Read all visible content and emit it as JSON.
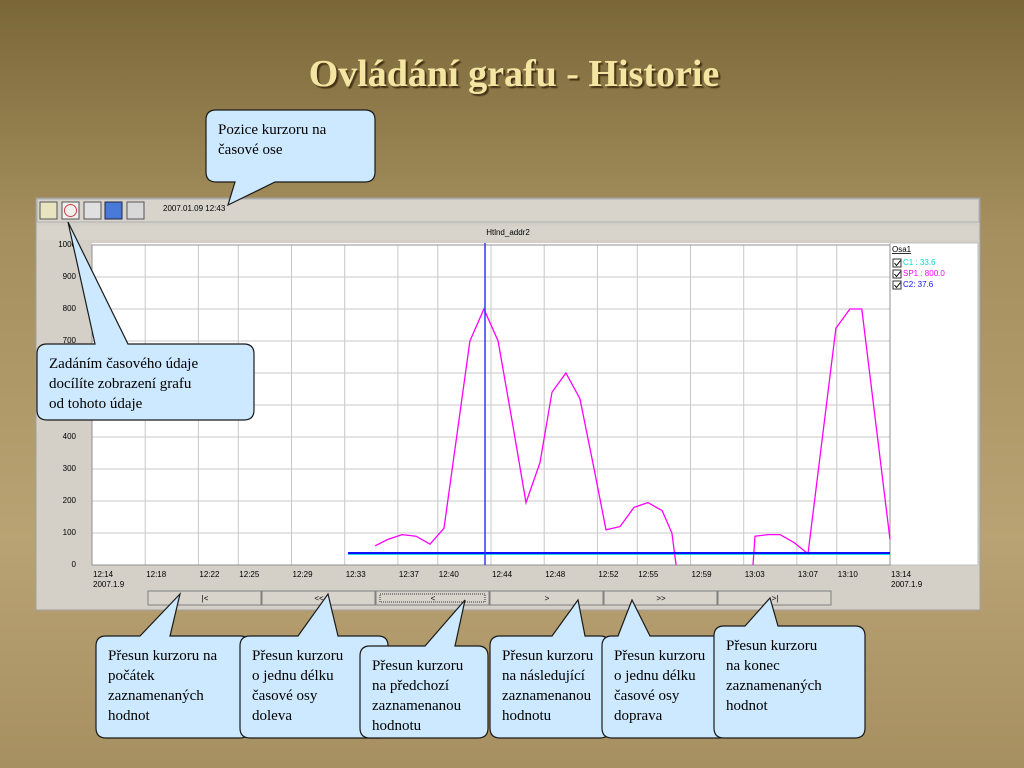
{
  "slide": {
    "title": "Ovládání grafu - Historie"
  },
  "toolbar": {
    "timestamp": "2007.01.09 12:43"
  },
  "chart_data": {
    "type": "line",
    "title": "Htlnd_addr2",
    "xlim": [
      "12:14",
      "13:14"
    ],
    "xticks": [
      "12:14",
      "12:18",
      "12:22",
      "12:25",
      "12:29",
      "12:33",
      "12:37",
      "12:40",
      "12:44",
      "12:48",
      "12:52",
      "12:55",
      "12:59",
      "13:03",
      "13:07",
      "13:10",
      "13:14"
    ],
    "date_label": "2007.1.9",
    "ylim": [
      0,
      1000
    ],
    "yticks": [
      0,
      100,
      200,
      300,
      400,
      500,
      600,
      700,
      800,
      900,
      1000
    ],
    "grid": true,
    "cursor": {
      "x": "12:43:33",
      "color": "#3535ff"
    },
    "legend": {
      "title": "Osa1"
    },
    "series": [
      {
        "name": "C1 : 33.6",
        "color": "#00d8d8",
        "x": [
          "12:33:15",
          "13:14:00"
        ],
        "values": [
          33.6,
          33.6
        ]
      },
      {
        "name": "SP1 : 800.0",
        "color": "#ff00ff",
        "x": [
          "12:35:17",
          "12:36:15",
          "12:37:19",
          "12:38:22",
          "12:39:25",
          "12:40:28",
          "12:42:25",
          "12:43:28",
          "12:44:32",
          "12:45:35",
          "12:46:38",
          "12:47:41",
          "12:48:35",
          "12:49:38",
          "12:50:41",
          "12:51:45",
          "12:52:39",
          "12:53:42",
          "12:54:45",
          "12:55:48",
          "12:56:52",
          "12:57:36",
          "12:57:55",
          "13:00:00",
          "13:03:42",
          "13:03:51",
          "13:04:50",
          "13:05:44",
          "13:06:47",
          "13:07:50",
          "13:09:56",
          "13:10:59",
          "13:11:53",
          "13:14:00"
        ],
        "values": [
          60,
          80,
          95,
          90,
          65,
          115,
          700,
          800,
          700,
          450,
          195,
          320,
          540,
          600,
          520,
          300,
          110,
          120,
          180,
          195,
          170,
          100,
          0,
          null,
          0,
          90,
          95,
          95,
          70,
          35,
          740,
          800,
          800,
          80
        ]
      },
      {
        "name": "C2: 37.6",
        "color": "#1010ff",
        "x": [
          "12:33:15",
          "13:14:00"
        ],
        "values": [
          37.6,
          37.6
        ]
      }
    ]
  },
  "nav": {
    "buttons": [
      "|<",
      "<<",
      "<",
      ">",
      ">>",
      ">|"
    ]
  },
  "callouts": [
    {
      "lines": [
        "Pozice kurzoru na",
        "časové ose"
      ]
    },
    {
      "lines": [
        "Zadáním časového údaje",
        "docílíte zobrazení grafu",
        "od tohoto údaje"
      ]
    },
    {
      "lines": [
        "Přesun kurzoru na",
        "počátek",
        "zaznamenaných",
        "hodnot"
      ]
    },
    {
      "lines": [
        "Přesun kurzoru",
        "o jednu délku",
        "časové osy",
        "doleva"
      ]
    },
    {
      "lines": [
        "Přesun kurzoru",
        "na předchozí",
        "zaznamenanou",
        "hodnotu"
      ]
    },
    {
      "lines": [
        "Přesun kurzoru",
        "na následující",
        "zaznamenanou",
        "hodnotu"
      ]
    },
    {
      "lines": [
        "Přesun kurzoru",
        "o jednu délku",
        "časové osy",
        "doprava"
      ]
    },
    {
      "lines": [
        "Přesun kurzoru",
        "na konec",
        "zaznamenaných",
        "hodnot"
      ]
    }
  ]
}
